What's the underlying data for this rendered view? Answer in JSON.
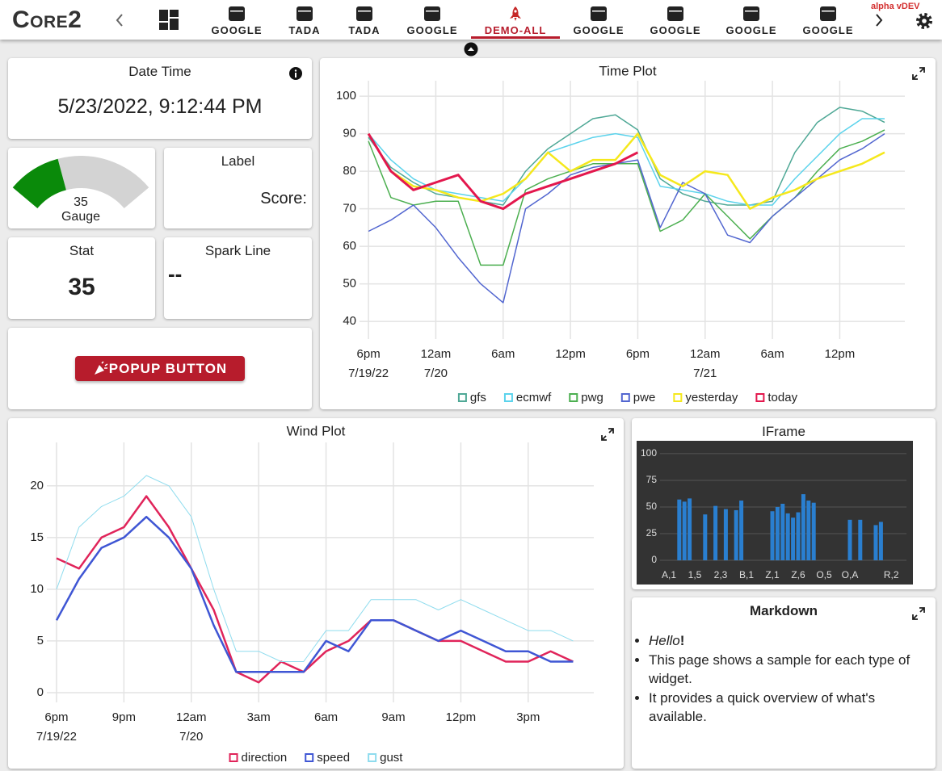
{
  "nav": {
    "logo": "Core2",
    "tabs": [
      "GOOGLE",
      "TADA",
      "TADA",
      "GOOGLE",
      "DEMO-ALL",
      "GOOGLE",
      "GOOGLE",
      "GOOGLE",
      "GOOGLE"
    ],
    "active_tab": 4,
    "version": "alpha vDEV"
  },
  "date_time": {
    "title": "Date Time",
    "value": "5/23/2022, 9:12:44 PM"
  },
  "gauge": {
    "value": 35,
    "range": [
      0,
      100
    ],
    "label": "Gauge",
    "color": "#0a8a0a"
  },
  "label_widget": {
    "title": "Label",
    "text": "Score:"
  },
  "stat": {
    "title": "Stat",
    "value": 35
  },
  "spark_line": {
    "title": "Spark Line",
    "value": "--"
  },
  "popup_button": {
    "label": "POPUP BUTTON"
  },
  "time_plot": {
    "type": "line",
    "title": "Time Plot",
    "grid": true,
    "x": [
      0,
      2,
      4,
      6,
      8,
      10,
      12,
      14,
      16,
      18,
      20,
      22,
      24,
      26,
      28,
      30,
      32,
      34,
      36,
      38,
      40,
      42,
      44,
      46
    ],
    "xlim": [
      -0.8,
      47.8
    ],
    "xticks": [
      {
        "value": 0,
        "label": "6pm",
        "date": "7/19/22"
      },
      {
        "value": 6,
        "label": "12am",
        "date": "7/20"
      },
      {
        "value": 12,
        "label": "6am"
      },
      {
        "value": 18,
        "label": "12pm"
      },
      {
        "value": 24,
        "label": "6pm"
      },
      {
        "value": 30,
        "label": "12am",
        "date": "7/21"
      },
      {
        "value": 36,
        "label": "6am"
      },
      {
        "value": 42,
        "label": "12pm"
      }
    ],
    "ylim": [
      35.3,
      104.1
    ],
    "yticks": [
      40,
      50,
      60,
      70,
      80,
      90,
      100
    ],
    "series": [
      {
        "name": "gfs",
        "color": "#4fa896",
        "width": 1.5,
        "values": [
          89,
          81,
          77,
          74,
          73,
          72,
          71,
          80,
          86,
          90,
          94,
          95,
          91,
          78,
          74,
          72,
          71,
          71,
          72,
          85,
          93,
          97,
          96,
          93
        ]
      },
      {
        "name": "ecmwf",
        "color": "#5bd3ec",
        "width": 1.5,
        "values": [
          90,
          83,
          78,
          75,
          74,
          73,
          72,
          78,
          85,
          87,
          89,
          90,
          89,
          76,
          75,
          74,
          72,
          71,
          71,
          78,
          84,
          90,
          94,
          94
        ]
      },
      {
        "name": "pwg",
        "color": "#4caf50",
        "width": 1.5,
        "values": [
          88,
          73,
          71,
          72,
          72,
          55,
          55,
          75,
          78,
          80,
          82,
          82,
          82,
          64,
          67,
          74,
          68,
          62,
          68,
          73,
          80,
          86,
          88,
          91
        ]
      },
      {
        "name": "pwe",
        "color": "#5266d0",
        "width": 1.5,
        "values": [
          64,
          67,
          71,
          65,
          57,
          50,
          45,
          70,
          74,
          79,
          81,
          82,
          83,
          65,
          77,
          74,
          63,
          61,
          68,
          73,
          78,
          83,
          86,
          90
        ]
      },
      {
        "name": "yesterday",
        "color": "#f5e81c",
        "width": 2.5,
        "values": [
          90,
          80,
          76,
          75,
          73,
          72,
          74,
          78,
          85,
          80,
          83,
          83,
          90,
          79,
          76,
          80,
          79,
          70,
          73,
          75,
          78,
          80,
          82,
          85
        ]
      },
      {
        "name": "today",
        "color": "#e3174d",
        "width": 3,
        "values": [
          90,
          80,
          75,
          77,
          79,
          72,
          70,
          74,
          76,
          78,
          80,
          82,
          85,
          null,
          null,
          null,
          null,
          null,
          null,
          null,
          null,
          null,
          null,
          null
        ]
      }
    ]
  },
  "wind_plot": {
    "type": "line",
    "title": "Wind Plot",
    "grid": true,
    "x": [
      0,
      1,
      2,
      3,
      4,
      5,
      6,
      7,
      8,
      9,
      10,
      11,
      12,
      13,
      14,
      15,
      16,
      17,
      18,
      19,
      20,
      21,
      22,
      23
    ],
    "xlim": [
      -0.43,
      23.92
    ],
    "xticks": [
      {
        "value": 0,
        "label": "6pm",
        "date": "7/19/22"
      },
      {
        "value": 3,
        "label": "9pm"
      },
      {
        "value": 6,
        "label": "12am",
        "date": "7/20"
      },
      {
        "value": 9,
        "label": "3am"
      },
      {
        "value": 12,
        "label": "6am"
      },
      {
        "value": 15,
        "label": "9am"
      },
      {
        "value": 18,
        "label": "12pm"
      },
      {
        "value": 21,
        "label": "3pm"
      }
    ],
    "ylim": [
      -0.94,
      24.2
    ],
    "yticks": [
      0,
      5,
      10,
      15,
      20
    ],
    "series": [
      {
        "name": "direction",
        "color": "#e0245a",
        "width": 2.5,
        "values": [
          13,
          12,
          15,
          16,
          19,
          16,
          12,
          8,
          2,
          1,
          3,
          2,
          4,
          5,
          7,
          7,
          6,
          5,
          5,
          4,
          3,
          3,
          4,
          3
        ]
      },
      {
        "name": "speed",
        "color": "#3f56d4",
        "width": 2.5,
        "values": [
          7,
          11,
          14,
          15,
          17,
          15,
          12,
          6.5,
          2,
          2,
          2,
          2,
          5,
          4,
          7,
          7,
          6,
          5,
          6,
          5,
          4,
          4,
          3,
          3
        ]
      },
      {
        "name": "gust",
        "color": "#8fdcee",
        "width": 1,
        "values": [
          10,
          16,
          18,
          19,
          21,
          20,
          17,
          10,
          4,
          4,
          3,
          3,
          6,
          6,
          9,
          9,
          9,
          8,
          9,
          8,
          7,
          6,
          6,
          5
        ]
      }
    ]
  },
  "iframe": {
    "title": "IFrame",
    "chart": {
      "type": "bar",
      "color": "#2a7fd0",
      "grid": true,
      "categories": [
        "A,1",
        null,
        null,
        null,
        null,
        "1,5",
        null,
        null,
        null,
        null,
        "2,3",
        null,
        null,
        null,
        null,
        "B,1",
        null,
        null,
        null,
        null,
        "Z,1",
        null,
        null,
        null,
        null,
        "Z,6",
        null,
        null,
        null,
        null,
        "O,5",
        null,
        null,
        null,
        null,
        "O,A",
        null,
        null,
        null,
        null,
        null,
        null,
        null,
        "R,2",
        null
      ],
      "values": [
        null,
        null,
        57,
        55,
        58,
        null,
        null,
        43,
        null,
        51,
        null,
        48,
        null,
        47,
        56,
        null,
        null,
        null,
        null,
        null,
        46,
        50,
        53,
        44,
        40,
        45,
        62,
        56,
        54,
        null,
        null,
        null,
        null,
        null,
        null,
        38,
        null,
        38,
        null,
        null,
        33,
        36,
        null,
        null,
        null
      ],
      "ylim": [
        0,
        106
      ],
      "yticks": [
        0,
        25,
        50,
        75,
        100
      ]
    }
  },
  "markdown": {
    "title": "Markdown",
    "items": [
      {
        "italic": "Hello",
        "bold": "!"
      },
      "This page shows a sample for each type of widget.",
      "It provides a quick overview of what's available."
    ]
  }
}
